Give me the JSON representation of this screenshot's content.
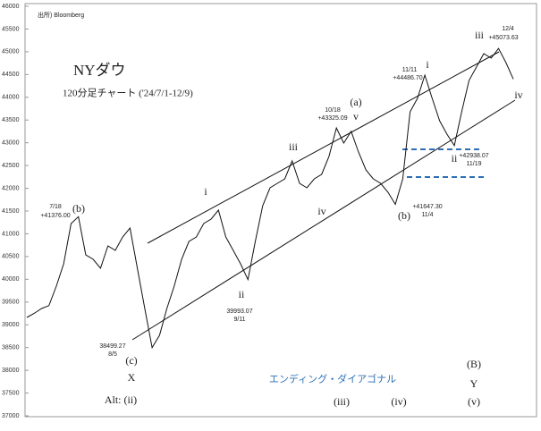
{
  "chart_data": {
    "type": "line",
    "title": "NYダウ",
    "subtitle": "120分足チャート ('24/7/1-12/9)",
    "source": "出所) Bloomberg",
    "series": [
      {
        "name": "NY Dow",
        "color": "#111111",
        "values": [
          39162,
          39250,
          39358,
          39420,
          39850,
          40341,
          41225,
          41376,
          40537,
          40439,
          40243,
          40734,
          40636,
          40930,
          41127,
          40243,
          39358,
          38499,
          38769,
          39358,
          39850,
          40439,
          40832,
          40930,
          41225,
          41323,
          41520,
          40930,
          40636,
          40341,
          39993,
          40832,
          41618,
          42011,
          42109,
          42208,
          42601,
          42109,
          42011,
          42208,
          42306,
          42699,
          43325,
          42994,
          43250,
          42797,
          42404,
          42208,
          42109,
          41913,
          41647,
          42208,
          43681,
          43976,
          44486,
          43976,
          43485,
          43190,
          42938,
          43681,
          44369,
          44664,
          44959,
          44860,
          45073,
          44762,
          44400
        ]
      }
    ],
    "ylim": [
      37000,
      46000
    ],
    "yticks": [
      37000,
      37500,
      38000,
      38500,
      39000,
      39500,
      40000,
      40500,
      41000,
      41500,
      42000,
      42500,
      43000,
      43500,
      44000,
      44500,
      45000,
      45500,
      46000
    ],
    "annotations": [
      "7/18",
      "+41376.00",
      "(b)",
      "38499.27",
      "8/5",
      "(c)",
      "X",
      "Alt: (ii)",
      "i",
      "ii",
      "39993.07",
      "9/11",
      "iii",
      "iv",
      "(iii)",
      "10/18",
      "+43325.09",
      "(a)",
      "v",
      "(b)",
      "+41647.30",
      "11/4",
      "(iv)",
      "i",
      "11/11",
      "+44486.70",
      "ii",
      "+42938.07",
      "11/19",
      "iii",
      "12/4",
      "+45073.63",
      "iv",
      "エンディング・ダイアゴナル",
      "(B)",
      "Y",
      "(v)"
    ]
  }
}
